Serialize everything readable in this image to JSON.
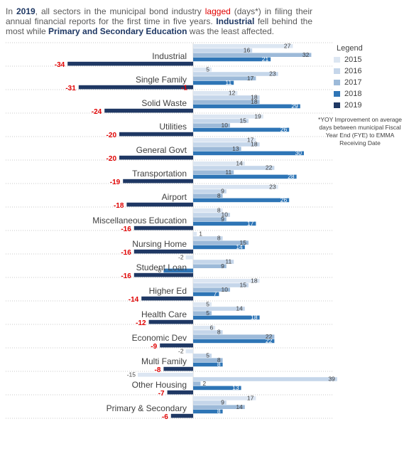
{
  "intro": {
    "p1": "In ",
    "year": "2019",
    "p2": ", all sectors in the municipal bond industry ",
    "lagged": "lagged",
    "p3": " (days*) in filing their annual financial reports for the first time in five years. ",
    "industrial": "Industrial",
    "p4": " fell behind the most while ",
    "pse": "Primary and Secondary Education",
    "p5": " was the least affected."
  },
  "legend": {
    "title": "Legend",
    "items": [
      "2015",
      "2016",
      "2017",
      "2018",
      "2019"
    ]
  },
  "footnote": "*YOY Improvement on average days between municipal Fiscal Year End (FYE) to EMMA Receiving Date",
  "colors": {
    "2015": "#dce6f2",
    "2016": "#c5d6ea",
    "2017": "#9dbad9",
    "2018": "#2e75b6",
    "2019": "#1f3864",
    "negative_label": "#e00000",
    "text": "#404040"
  },
  "chart_data": {
    "type": "bar",
    "orientation": "horizontal",
    "xlabel": "",
    "ylabel": "",
    "categories": [
      "Industrial",
      "Single Family",
      "Solid Waste",
      "Utilities",
      "General Govt",
      "Transportation",
      "Airport",
      "Miscellaneous Education",
      "Nursing Home",
      "Student Loan",
      "Higher Ed",
      "Health Care",
      "Economic Dev",
      "Multi Family",
      "Other Housing",
      "Primary & Secondary"
    ],
    "series": [
      {
        "name": "2015",
        "values": [
          27,
          5,
          12,
          19,
          17,
          14,
          23,
          8,
          1,
          -2,
          18,
          5,
          6,
          -2,
          -15,
          17
        ]
      },
      {
        "name": "2016",
        "values": [
          16,
          23,
          18,
          15,
          18,
          22,
          9,
          10,
          8,
          11,
          15,
          14,
          8,
          5,
          39,
          9
        ]
      },
      {
        "name": "2017",
        "values": [
          32,
          17,
          18,
          10,
          13,
          11,
          8,
          9,
          15,
          9,
          10,
          5,
          22,
          8,
          2,
          14
        ]
      },
      {
        "name": "2018",
        "values": [
          21,
          11,
          29,
          26,
          30,
          28,
          26,
          17,
          14,
          -8,
          7,
          18,
          22,
          8,
          13,
          8
        ]
      },
      {
        "name": "2019",
        "values": [
          -34,
          -31,
          -24,
          -20,
          -20,
          -19,
          -18,
          -16,
          -16,
          -16,
          -14,
          -12,
          -9,
          -8,
          -7,
          -6
        ]
      }
    ],
    "extra_labels": [
      {
        "category": "Single Family",
        "value": -1
      }
    ]
  }
}
